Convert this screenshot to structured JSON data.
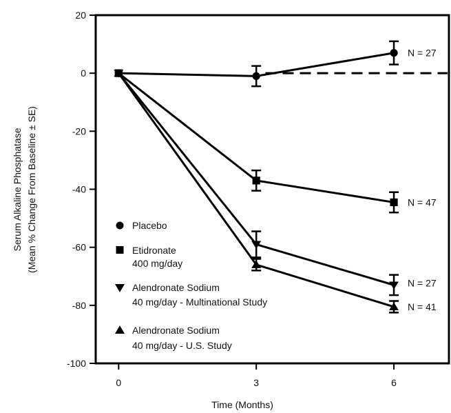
{
  "chart_data": {
    "type": "line",
    "xlabel": "Time (Months)",
    "ylabel_line1": "Serum Alkaline Phosphatase",
    "ylabel_line2": "(Mean % Change From Baseline ± SE)",
    "xlim": [
      -0.5,
      7.2
    ],
    "ylim": [
      -100,
      20
    ],
    "x_ticks": [
      0,
      3,
      6
    ],
    "x_tick_labels": [
      "0",
      "3",
      "6"
    ],
    "y_ticks": [
      20,
      0,
      -20,
      -40,
      -60,
      -80,
      -100
    ],
    "y_tick_labels": [
      "20",
      "0",
      "-20",
      "-40",
      "-60",
      "-80",
      "-100"
    ],
    "reference_line": {
      "y": 0,
      "style": "dashed"
    },
    "series": [
      {
        "name": "Placebo",
        "marker": "circle",
        "x": [
          0,
          3,
          6
        ],
        "y": [
          0,
          -1,
          7
        ],
        "se": [
          0,
          3.5,
          4
        ],
        "end_label": "N = 27"
      },
      {
        "name": "Etidronate",
        "name_line2": "400 mg/day",
        "marker": "square",
        "x": [
          0,
          3,
          6
        ],
        "y": [
          0,
          -37,
          -44.5
        ],
        "se": [
          0,
          3.5,
          3.5
        ],
        "end_label": "N = 47"
      },
      {
        "name": "Alendronate Sodium",
        "name_line2": "40 mg/day - Multinational Study",
        "marker": "triangle-down",
        "x": [
          0,
          3,
          6
        ],
        "y": [
          0,
          -59,
          -73
        ],
        "se": [
          0,
          4.5,
          3.5
        ],
        "end_label": "N = 27"
      },
      {
        "name": "Alendronate Sodium",
        "name_line2": "40 mg/day - U.S. Study",
        "marker": "triangle-up",
        "x": [
          0,
          3,
          6
        ],
        "y": [
          0,
          -66,
          -80.5
        ],
        "se": [
          0,
          2,
          2
        ],
        "end_label": "N = 41"
      }
    ],
    "legend_position": "lower-left inside"
  }
}
